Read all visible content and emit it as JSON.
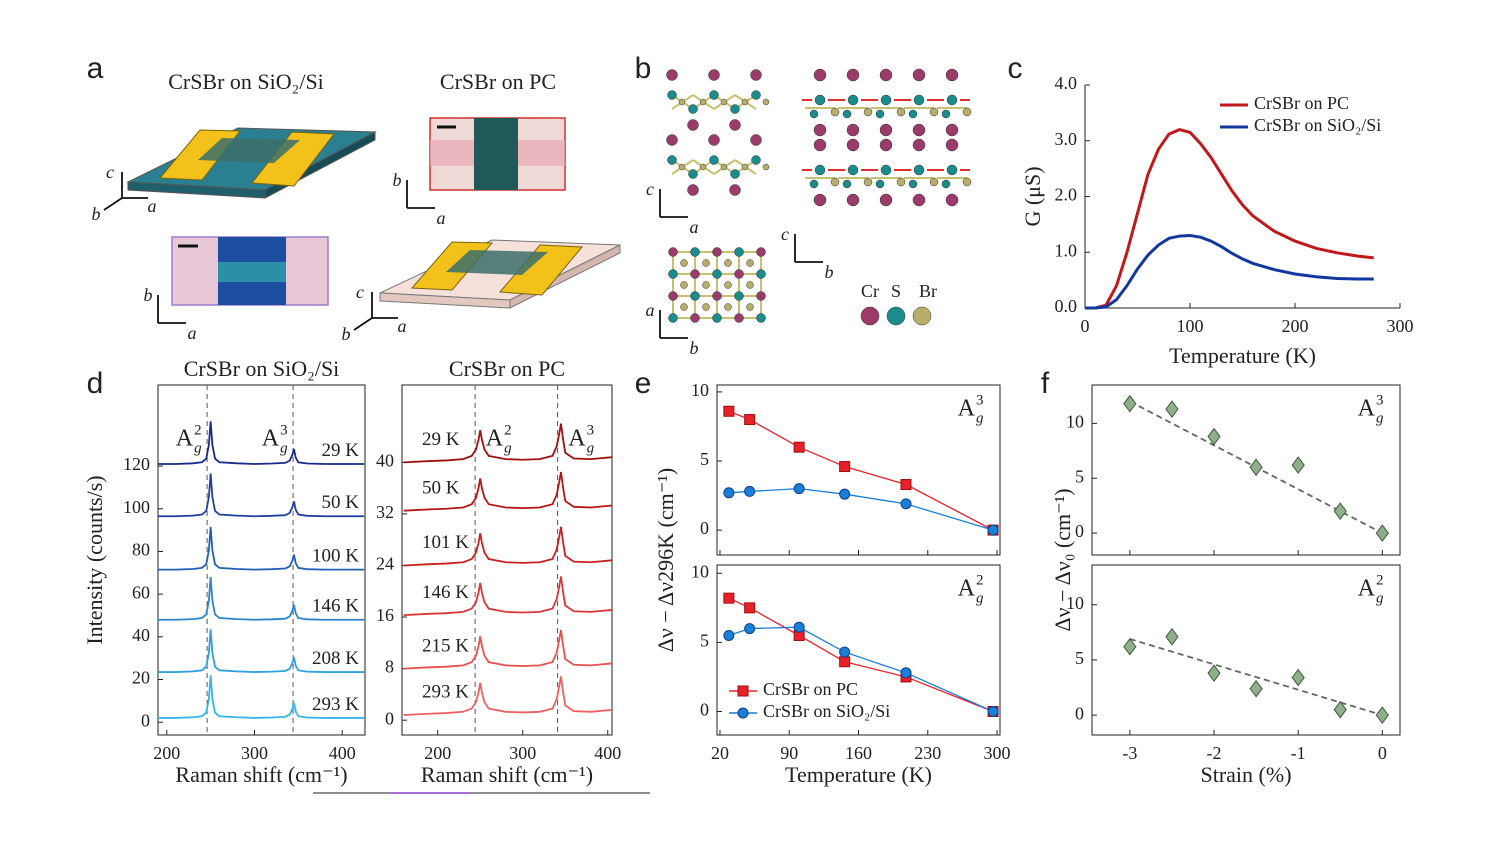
{
  "illustrations": {
    "a": {
      "panel": "a",
      "title_sio2": "CrSBr on SiO₂/Si",
      "title_pc": "CrSBr on PC",
      "axes_sio2_device": [
        "c",
        "b",
        "a"
      ],
      "axes_sio2_image": [
        "b",
        "a"
      ],
      "axes_pc_image": [
        "b",
        "a"
      ],
      "axes_pc_device": [
        "c",
        "b",
        "a"
      ]
    },
    "b": {
      "panel": "b",
      "axes_side_a": [
        "c",
        "a"
      ],
      "axes_side_b": [
        "c",
        "b"
      ],
      "axes_top": [
        "a",
        "b"
      ],
      "legend": [
        {
          "name": "Cr",
          "color": "#9b3b6a"
        },
        {
          "name": "S",
          "color": "#1a8c8c"
        },
        {
          "name": "Br",
          "color": "#b8ad6a"
        }
      ]
    }
  },
  "chart_data": [
    {
      "type": "line",
      "panel": "c",
      "xlabel": "Temperature (K)",
      "ylabel": "G (μS)",
      "xlim": [
        0,
        300
      ],
      "xticks": [
        0,
        100,
        200,
        300
      ],
      "ylim": [
        0,
        4
      ],
      "yticks": [
        {
          "value": 0,
          "label": "0.0"
        },
        {
          "value": 1,
          "label": "1.0"
        },
        {
          "value": 2,
          "label": "2.0"
        },
        {
          "value": 3,
          "label": "3.0"
        },
        {
          "value": 4,
          "label": "4.0"
        }
      ],
      "legend": "upper right",
      "x": [
        0,
        10,
        20,
        30,
        40,
        50,
        60,
        70,
        80,
        90,
        100,
        110,
        120,
        130,
        140,
        150,
        160,
        180,
        200,
        220,
        240,
        260,
        275
      ],
      "series": [
        {
          "name": "CrSBr on PC",
          "color": "#c0181c",
          "values": [
            0,
            0,
            0.05,
            0.4,
            1.0,
            1.7,
            2.4,
            2.85,
            3.12,
            3.2,
            3.15,
            2.95,
            2.7,
            2.4,
            2.1,
            1.85,
            1.65,
            1.38,
            1.2,
            1.07,
            0.99,
            0.93,
            0.9
          ]
        },
        {
          "name": "CrSBr on SiO₂/Si",
          "color": "#1238a0",
          "values": [
            0,
            0,
            0.02,
            0.15,
            0.4,
            0.7,
            0.95,
            1.13,
            1.25,
            1.29,
            1.3,
            1.27,
            1.2,
            1.1,
            0.98,
            0.88,
            0.8,
            0.69,
            0.61,
            0.56,
            0.53,
            0.52,
            0.52
          ]
        }
      ]
    },
    {
      "type": "line",
      "panel": "d",
      "title": "CrSBr on SiO₂/Si",
      "title_color": "#1a2a8c",
      "xlabel": "Raman shift (cm⁻¹)",
      "ylabel": "Intensity (counts/s)",
      "xlim": [
        190,
        426
      ],
      "xticks": [
        200,
        300,
        400
      ],
      "ylim": [
        -6,
        158
      ],
      "yticks": [
        0,
        20,
        40,
        60,
        80,
        100,
        120
      ],
      "peaks": [
        {
          "position": 246,
          "label": {
            "base": "A",
            "sub": "g",
            "sup": "2"
          }
        },
        {
          "position": 344,
          "label": {
            "base": "A",
            "sub": "g",
            "sup": "3"
          }
        }
      ],
      "x": [
        190,
        210,
        230,
        240,
        245,
        248,
        250,
        252,
        255,
        260,
        280,
        300,
        320,
        335,
        340,
        343,
        345,
        347,
        350,
        360,
        380,
        400,
        425
      ],
      "series": [
        {
          "name": "29 K",
          "color": "#1a2a8c",
          "values": [
            121,
            121,
            121.3,
            121.8,
            123.5,
            130,
            141,
            130,
            123.5,
            121.8,
            121.3,
            121,
            121.2,
            121.5,
            122.5,
            125,
            128,
            124,
            121.8,
            121.2,
            121,
            121,
            121
          ]
        },
        {
          "name": "50 K",
          "color": "#1f3fa0",
          "values": [
            96.5,
            96.5,
            96.8,
            97.3,
            99,
            105.5,
            116.5,
            105.5,
            99,
            97.3,
            96.8,
            96.5,
            96.7,
            97,
            98,
            100.5,
            103.5,
            99.5,
            97.3,
            96.7,
            96.5,
            96.5,
            96.5
          ]
        },
        {
          "name": "100 K",
          "color": "#1f5fb5",
          "values": [
            71.5,
            71.5,
            71.8,
            72.3,
            74,
            80.5,
            91.5,
            80.5,
            74,
            72.3,
            71.8,
            71.5,
            71.7,
            72,
            73,
            75.5,
            78.5,
            74.5,
            72.3,
            71.7,
            71.5,
            71.5,
            71.5
          ]
        },
        {
          "name": "146 K",
          "color": "#2a85cc",
          "values": [
            48,
            48,
            48.3,
            48.8,
            50.5,
            57,
            68,
            57,
            50.5,
            48.8,
            48.3,
            48,
            48.2,
            48.5,
            49.5,
            52,
            55,
            51,
            48.8,
            48.2,
            48,
            48,
            48
          ]
        },
        {
          "name": "208 K",
          "color": "#2ea0e0",
          "values": [
            23.5,
            23.5,
            23.8,
            24.3,
            26,
            32.5,
            43.5,
            32.5,
            26,
            24.3,
            23.8,
            23.5,
            23.7,
            24,
            25,
            27.5,
            30.5,
            26.5,
            24.3,
            23.7,
            23.5,
            23.5,
            23.5
          ]
        },
        {
          "name": "293 K",
          "color": "#35b5ee",
          "values": [
            2,
            2,
            2.3,
            2.8,
            4.5,
            11,
            22,
            11,
            4.5,
            2.8,
            2.3,
            2,
            2.2,
            2.5,
            3.5,
            6,
            9,
            5,
            2.8,
            2.2,
            2,
            2,
            2
          ]
        }
      ]
    },
    {
      "type": "line",
      "title": "CrSBr on PC",
      "title_color": "#a01010",
      "xlabel": "Raman shift (cm⁻¹)",
      "xlim": [
        158,
        405
      ],
      "xticks": [
        200,
        300,
        400
      ],
      "ylim": [
        -2.3,
        52
      ],
      "yticks": [
        0,
        8,
        16,
        24,
        32,
        40
      ],
      "peaks": [
        {
          "position": 244,
          "label": {
            "base": "A",
            "sub": "g",
            "sup": "2"
          }
        },
        {
          "position": 341,
          "label": {
            "base": "A",
            "sub": "g",
            "sup": "3"
          }
        }
      ],
      "x": [
        160,
        190,
        210,
        230,
        240,
        245,
        248,
        250,
        252,
        255,
        260,
        280,
        300,
        320,
        335,
        340,
        343,
        345,
        347,
        350,
        360,
        380,
        405
      ],
      "series": [
        {
          "name": "29 K",
          "color": "#a01010",
          "values": [
            40,
            40.2,
            40.3,
            40.5,
            41,
            42,
            43.5,
            45,
            43.5,
            42,
            41,
            40.5,
            40.4,
            40.5,
            41,
            42.5,
            44.5,
            46,
            44,
            41.5,
            40.6,
            40.5,
            40.8
          ]
        },
        {
          "name": "50 K",
          "color": "#b51515",
          "values": [
            32.5,
            32.7,
            32.8,
            33,
            33.5,
            34.5,
            36,
            37.5,
            36,
            34.5,
            33.5,
            33,
            32.9,
            33,
            33.5,
            35,
            37,
            38.5,
            36.5,
            34,
            33.1,
            33,
            33.3
          ]
        },
        {
          "name": "101 K",
          "color": "#c82020",
          "values": [
            24,
            24.2,
            24.3,
            24.5,
            25,
            26,
            27.5,
            29,
            27.5,
            26,
            25,
            24.5,
            24.4,
            24.5,
            25,
            26.5,
            28.5,
            30,
            28,
            25.5,
            24.6,
            24.5,
            24.8
          ]
        },
        {
          "name": "146 K",
          "color": "#dc3535",
          "values": [
            16.3,
            16.5,
            16.6,
            16.8,
            17.3,
            18.3,
            19.8,
            21.3,
            19.8,
            18.3,
            17.3,
            16.8,
            16.7,
            16.8,
            17.3,
            18.8,
            20.8,
            22.3,
            20.3,
            17.8,
            16.9,
            16.8,
            17.1
          ]
        },
        {
          "name": "215 K",
          "color": "#e85050",
          "values": [
            8,
            8.2,
            8.3,
            8.5,
            9,
            10,
            11.5,
            13,
            11.5,
            10,
            9,
            8.5,
            8.4,
            8.5,
            9,
            10.5,
            12.5,
            14,
            12,
            9.5,
            8.6,
            8.5,
            8.8
          ]
        },
        {
          "name": "293 K",
          "color": "#f06060",
          "values": [
            0.8,
            1,
            1.1,
            1.3,
            1.8,
            2.8,
            4.3,
            5.8,
            4.3,
            2.8,
            1.8,
            1.3,
            1.2,
            1.3,
            1.8,
            3.3,
            5.3,
            6.8,
            4.8,
            2.3,
            1.4,
            1.3,
            1.6
          ]
        }
      ]
    },
    {
      "type": "line",
      "panel": "e",
      "ylabel": "Δν − Δν296K (cm⁻¹)",
      "panel_label": {
        "base": "A",
        "sub": "g",
        "sup": "3"
      },
      "xlim": [
        17,
        303
      ],
      "ylim": [
        -1.8,
        10.5
      ],
      "yticks": [
        0,
        5,
        10
      ],
      "x": [
        29,
        50,
        100,
        146,
        208,
        296
      ],
      "series": [
        {
          "color": "#e8202a",
          "marker": "square",
          "values": [
            8.6,
            8.0,
            6.0,
            4.6,
            3.3,
            0
          ]
        },
        {
          "color": "#1a7fd8",
          "marker": "circle",
          "values": [
            2.7,
            2.8,
            3.0,
            2.6,
            1.9,
            0
          ]
        }
      ]
    },
    {
      "type": "line",
      "xlabel": "Temperature (K)",
      "panel_label": {
        "base": "A",
        "sub": "g",
        "sup": "2"
      },
      "legend": "lower left",
      "xlim": [
        17,
        303
      ],
      "xticks": [
        20,
        90,
        160,
        230,
        300
      ],
      "ylim": [
        -1.7,
        10.6
      ],
      "yticks": [
        0,
        5,
        10
      ],
      "x": [
        29,
        50,
        100,
        146,
        208,
        296
      ],
      "series": [
        {
          "name": "CrSBr on PC",
          "color": "#e8202a",
          "marker": "square",
          "values": [
            8.2,
            7.5,
            5.5,
            3.6,
            2.5,
            0
          ]
        },
        {
          "name": "CrSBr on SiO₂/Si",
          "color": "#1a7fd8",
          "marker": "circle",
          "values": [
            5.5,
            6.0,
            6.1,
            4.3,
            2.8,
            0
          ]
        }
      ]
    },
    {
      "type": "scatter",
      "panel": "f",
      "ylabel": "Δν − Δν₀ (cm⁻¹)",
      "panel_label": {
        "base": "A",
        "sub": "g",
        "sup": "3"
      },
      "xlim": [
        -3.45,
        0.21
      ],
      "ylim": [
        -2,
        13.5
      ],
      "yticks": [
        0,
        5,
        10
      ],
      "color": "#8fae8a",
      "x": [
        -3,
        -2.5,
        -2,
        -1.5,
        -1,
        -0.5,
        0
      ],
      "values": [
        11.8,
        11.3,
        8.8,
        6.0,
        6.2,
        2.0,
        0
      ],
      "fit": {
        "x": [
          -3,
          0
        ],
        "y": [
          12,
          0
        ]
      }
    },
    {
      "type": "scatter",
      "xlabel": "Strain (%)",
      "panel_label": {
        "base": "A",
        "sub": "g",
        "sup": "2"
      },
      "xlim": [
        -3.45,
        0.21
      ],
      "xticks": [
        -3,
        -2,
        -1,
        0
      ],
      "ylim": [
        -1.8,
        13.6
      ],
      "yticks": [
        0,
        5,
        10
      ],
      "color": "#8fae8a",
      "x": [
        -3,
        -2.5,
        -2,
        -1.5,
        -1,
        -0.5,
        0
      ],
      "values": [
        6.2,
        7.1,
        3.8,
        2.4,
        3.4,
        0.5,
        0
      ],
      "fit": {
        "x": [
          -3,
          0
        ],
        "y": [
          6.9,
          0
        ]
      }
    }
  ]
}
